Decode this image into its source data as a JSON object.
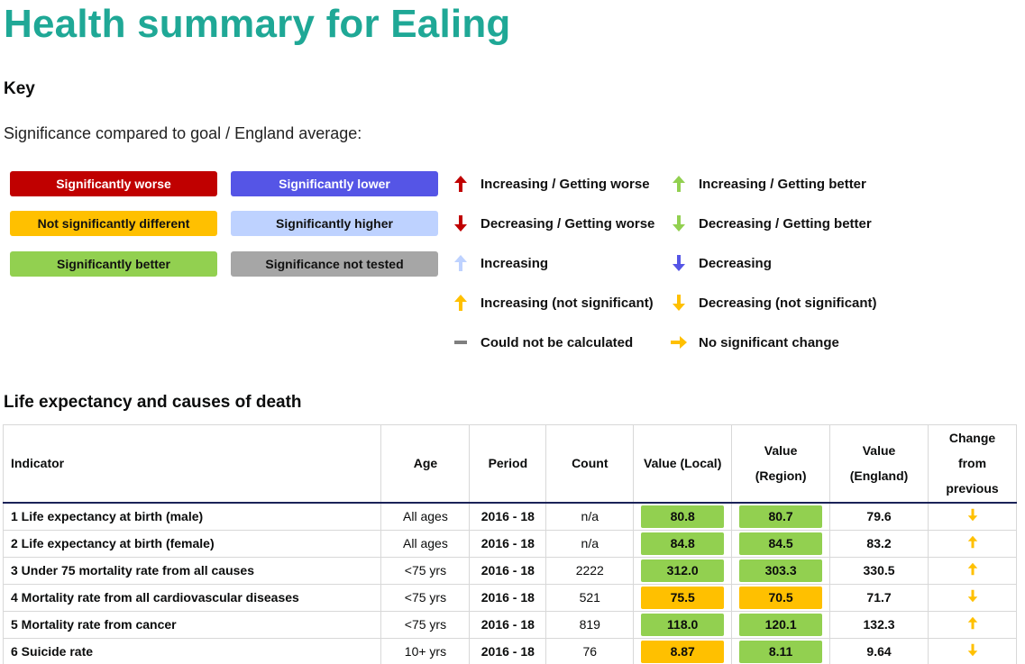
{
  "title": "Health summary for Ealing",
  "key": {
    "heading": "Key",
    "significance_label": "Significance compared to goal / England average:",
    "pills": [
      {
        "label": "Significantly worse",
        "bg": "#c00000",
        "fg": "#ffffff"
      },
      {
        "label": "Not significantly different",
        "bg": "#ffc000",
        "fg": "#111111"
      },
      {
        "label": "Significantly better",
        "bg": "#92d050",
        "fg": "#111111"
      },
      {
        "label": "Significantly lower",
        "bg": "#5555e6",
        "fg": "#ffffff"
      },
      {
        "label": "Significantly higher",
        "bg": "#bed2ff",
        "fg": "#111111"
      },
      {
        "label": "Significance not tested",
        "bg": "#a6a6a6",
        "fg": "#111111"
      }
    ],
    "trends": [
      {
        "label": "Increasing / Getting worse",
        "icon": "arrow-up-red-icon"
      },
      {
        "label": "Decreasing / Getting worse",
        "icon": "arrow-down-red-icon"
      },
      {
        "label": "Increasing",
        "icon": "arrow-up-lightblue-icon"
      },
      {
        "label": "Increasing (not significant)",
        "icon": "arrow-up-amber-icon"
      },
      {
        "label": "Could not be calculated",
        "icon": "dash-grey-icon"
      },
      {
        "label": "Increasing / Getting better",
        "icon": "arrow-up-green-icon"
      },
      {
        "label": "Decreasing / Getting better",
        "icon": "arrow-down-green-icon"
      },
      {
        "label": "Decreasing",
        "icon": "arrow-down-blue-icon"
      },
      {
        "label": "Decreasing (not significant)",
        "icon": "arrow-down-amber-icon"
      },
      {
        "label": "No significant change",
        "icon": "arrow-right-amber-icon"
      }
    ]
  },
  "section": {
    "heading": "Life expectancy and causes of death",
    "columns": {
      "indicator": "Indicator",
      "age": "Age",
      "period": "Period",
      "count": "Count",
      "value_local": "Value (Local)",
      "value_region_1": "Value",
      "value_region_2": "(Region)",
      "value_england_1": "Value",
      "value_england_2": "(England)",
      "change_1": "Change",
      "change_2": "from",
      "change_3": "previous"
    },
    "rows": [
      {
        "indicator": "1 Life expectancy at birth (male)",
        "age": "All ages",
        "period": "2016 - 18",
        "count": "n/a",
        "local": "80.8",
        "local_color": "#92d050",
        "region": "80.7",
        "region_color": "#92d050",
        "england": "79.6",
        "change_icon": "arrow-down-amber-icon"
      },
      {
        "indicator": "2 Life expectancy at birth (female)",
        "age": "All ages",
        "period": "2016 - 18",
        "count": "n/a",
        "local": "84.8",
        "local_color": "#92d050",
        "region": "84.5",
        "region_color": "#92d050",
        "england": "83.2",
        "change_icon": "arrow-up-amber-icon"
      },
      {
        "indicator": "3 Under 75 mortality rate from all causes",
        "age": "<75 yrs",
        "period": "2016 - 18",
        "count": "2222",
        "local": "312.0",
        "local_color": "#92d050",
        "region": "303.3",
        "region_color": "#92d050",
        "england": "330.5",
        "change_icon": "arrow-up-amber-icon"
      },
      {
        "indicator": "4 Mortality rate from all cardiovascular diseases",
        "age": "<75 yrs",
        "period": "2016 - 18",
        "count": "521",
        "local": "75.5",
        "local_color": "#ffc000",
        "region": "70.5",
        "region_color": "#ffc000",
        "england": "71.7",
        "change_icon": "arrow-down-amber-icon"
      },
      {
        "indicator": "5 Mortality rate from cancer",
        "age": "<75 yrs",
        "period": "2016 - 18",
        "count": "819",
        "local": "118.0",
        "local_color": "#92d050",
        "region": "120.1",
        "region_color": "#92d050",
        "england": "132.3",
        "change_icon": "arrow-up-amber-icon"
      },
      {
        "indicator": "6 Suicide rate",
        "age": "10+ yrs",
        "period": "2016 - 18",
        "count": "76",
        "local": "8.87",
        "local_color": "#ffc000",
        "region": "8.11",
        "region_color": "#92d050",
        "england": "9.64",
        "change_icon": "arrow-down-amber-icon"
      }
    ]
  }
}
